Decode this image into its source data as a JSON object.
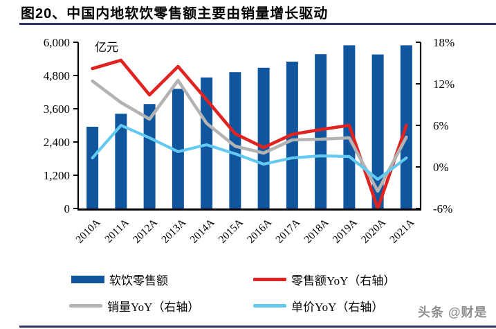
{
  "title": "图20、中国内地软饮零售额主要由销量增长驱动",
  "watermark": "头条 @财是",
  "colors": {
    "bar": "#10569f",
    "retail_yoy": "#e02320",
    "volume_yoy": "#b3b3b3",
    "price_yoy": "#63c9f1",
    "divider": "#2f3367",
    "axis": "#000000",
    "watermark_text": "#8f8f8f"
  },
  "legend": {
    "items": [
      {
        "label": "软饮零售额",
        "color_key": "bar",
        "type": "bar"
      },
      {
        "label": "零售额YoY（右轴）",
        "color_key": "retail_yoy",
        "type": "line"
      },
      {
        "label": "销量YoY（右轴）",
        "color_key": "volume_yoy",
        "type": "line"
      },
      {
        "label": "单价YoY（右轴）",
        "color_key": "price_yoy",
        "type": "line"
      }
    ]
  },
  "chart_data": {
    "type": "combo-bar-line",
    "categories": [
      "2010A",
      "2011A",
      "2012A",
      "2013A",
      "2014A",
      "2015A",
      "2016A",
      "2017A",
      "2018A",
      "2019A",
      "2020A",
      "2021A"
    ],
    "bar_series": {
      "name": "软饮零售额",
      "axis": "left",
      "unit": "亿元",
      "values": [
        2950,
        3420,
        3770,
        4320,
        4730,
        4920,
        5080,
        5300,
        5570,
        5890,
        5560,
        5890
      ]
    },
    "series": [
      {
        "name": "零售额YoY（右轴）",
        "axis": "right",
        "color_key": "retail_yoy",
        "values": [
          14.2,
          15.4,
          10.4,
          14.5,
          9.7,
          4.8,
          2.8,
          4.7,
          5.4,
          6.0,
          -6.0,
          6.0
        ]
      },
      {
        "name": "销量YoY（右轴）",
        "axis": "right",
        "color_key": "volume_yoy",
        "values": [
          12.4,
          9.3,
          6.9,
          12.5,
          6.3,
          3.0,
          2.0,
          3.9,
          4.0,
          4.2,
          -3.5,
          4.3
        ]
      },
      {
        "name": "单价YoY（右轴）",
        "axis": "right",
        "color_key": "price_yoy",
        "values": [
          1.3,
          6.0,
          4.2,
          2.2,
          3.2,
          1.9,
          0.4,
          1.3,
          1.6,
          1.5,
          -1.8,
          1.3
        ]
      }
    ],
    "left_axis": {
      "label": "亿元",
      "min": 0,
      "max": 6000,
      "step": 1200,
      "tick_labels": [
        "0",
        "1,200",
        "2,400",
        "3,600",
        "4,800",
        "6,000"
      ]
    },
    "right_axis": {
      "min": -6,
      "max": 18,
      "step": 6,
      "tick_labels": [
        "-6%",
        "0%",
        "6%",
        "12%",
        "18%"
      ]
    },
    "grid": false,
    "legend_position": "bottom"
  }
}
